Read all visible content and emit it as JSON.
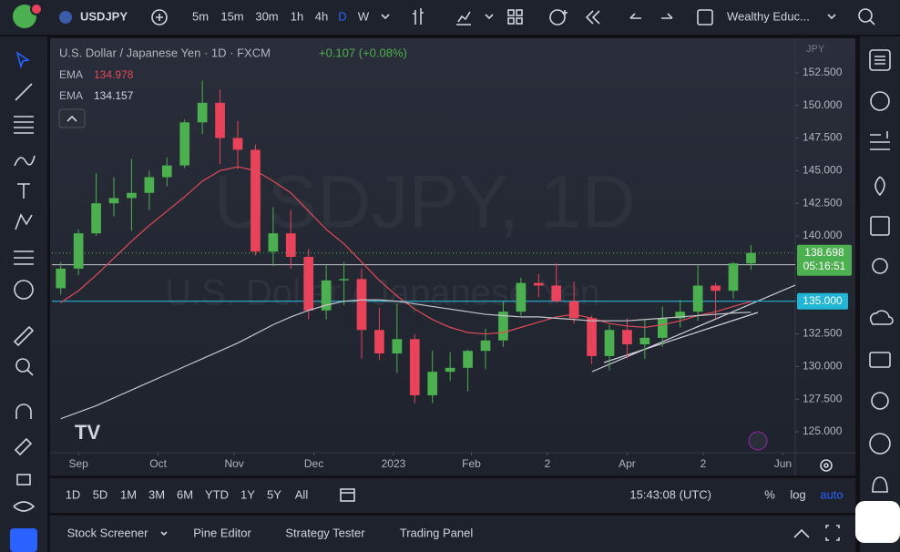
{
  "toolbar": {
    "symbol": "USDJPY",
    "intervals": [
      "5m",
      "15m",
      "30m",
      "1h",
      "4h",
      "D",
      "W"
    ],
    "layout_name": "Wealthy Educ..."
  },
  "legend": {
    "description": "U.S. Dollar / Japanese Yen · 1D · FXCM",
    "change": "+0.107 (+0.08%)",
    "ema_label": "EMA"
  },
  "watermark": {
    "title": "USDJPY, 1D",
    "subtitle": "U.S. Dollar / Japanese Yen"
  },
  "chart_data": {
    "type": "candlestick",
    "currency": "JPY",
    "up_color": "#4caf50",
    "down_color": "#e8435a",
    "x": [
      0,
      1,
      2,
      3,
      4,
      5,
      6,
      7,
      8,
      9,
      10,
      11,
      12,
      13,
      14,
      15,
      16,
      17,
      18,
      19,
      20,
      21,
      22,
      23,
      24,
      25,
      26,
      27,
      28,
      29,
      30,
      31,
      32,
      33,
      34,
      35,
      36,
      37,
      38,
      39
    ],
    "open": [
      136.0,
      137.5,
      140.2,
      142.5,
      142.9,
      143.3,
      144.5,
      145.4,
      148.7,
      150.2,
      147.5,
      146.6,
      138.8,
      140.2,
      138.4,
      134.3,
      136.6,
      136.7,
      132.8,
      131.0,
      132.1,
      127.8,
      129.6,
      129.9,
      131.2,
      132.0,
      134.2,
      136.4,
      136.2,
      135.0,
      133.7,
      130.8,
      132.8,
      131.7,
      132.2,
      133.7,
      134.2,
      136.2,
      135.8,
      137.9
    ],
    "high": [
      138.0,
      140.5,
      144.8,
      144.5,
      145.9,
      145.0,
      146.0,
      148.9,
      151.9,
      151.2,
      148.8,
      147.0,
      142.2,
      142.0,
      139.0,
      137.8,
      138.0,
      137.5,
      134.5,
      134.8,
      132.5,
      131.2,
      131.1,
      131.3,
      132.9,
      135.0,
      136.8,
      137.1,
      137.9,
      136.5,
      133.9,
      133.2,
      133.7,
      133.6,
      134.6,
      135.1,
      137.8,
      136.4,
      138.0,
      139.3
    ],
    "low": [
      135.5,
      137.0,
      140.0,
      141.5,
      140.4,
      142.0,
      143.8,
      145.2,
      147.8,
      145.5,
      145.1,
      138.5,
      137.7,
      137.5,
      133.6,
      133.6,
      134.7,
      130.6,
      130.5,
      129.5,
      127.2,
      127.2,
      128.9,
      128.1,
      129.8,
      131.5,
      133.9,
      135.3,
      134.9,
      133.3,
      130.2,
      129.7,
      130.6,
      130.6,
      131.5,
      133.0,
      133.5,
      133.7,
      135.2,
      137.4
    ],
    "close": [
      137.5,
      140.2,
      142.5,
      142.9,
      143.3,
      144.5,
      145.4,
      148.7,
      150.2,
      147.5,
      146.6,
      138.8,
      140.2,
      138.4,
      134.3,
      136.6,
      136.7,
      132.8,
      131.0,
      132.1,
      127.8,
      129.6,
      129.9,
      131.2,
      132.0,
      134.2,
      136.4,
      136.2,
      135.0,
      133.7,
      130.8,
      132.8,
      131.7,
      132.2,
      133.7,
      134.2,
      136.2,
      135.8,
      137.9,
      138.7
    ],
    "series": [
      {
        "name": "EMA",
        "color": "#e04a5a",
        "values": [
          134.9,
          135.8,
          137.0,
          138.3,
          139.6,
          140.8,
          141.9,
          143.0,
          144.2,
          145.0,
          145.3,
          145.0,
          144.2,
          143.3,
          141.9,
          140.5,
          139.4,
          138.0,
          136.6,
          135.4,
          134.4,
          133.6,
          133.0,
          132.6,
          132.5,
          132.6,
          133.0,
          133.4,
          133.8,
          134.0,
          133.7,
          133.3,
          133.1,
          133.0,
          133.2,
          133.5,
          133.9,
          134.2,
          134.6,
          134.978
        ]
      },
      {
        "name": "EMA",
        "color": "#c4c6cc",
        "values": [
          126.0,
          126.5,
          127.0,
          127.6,
          128.2,
          128.8,
          129.4,
          130.0,
          130.6,
          131.2,
          131.8,
          132.5,
          133.2,
          133.8,
          134.3,
          134.7,
          135.0,
          135.1,
          135.1,
          135.0,
          134.8,
          134.6,
          134.4,
          134.2,
          134.0,
          133.9,
          133.8,
          133.8,
          133.7,
          133.6,
          133.5,
          133.5,
          133.5,
          133.6,
          133.7,
          133.8,
          133.9,
          134.0,
          134.1,
          134.157
        ]
      }
    ],
    "last_price": 138.698,
    "countdown": "05:16:51",
    "price_line": {
      "value": 135,
      "label": "135.000",
      "color": "#22b6d6"
    },
    "drawn_levels": [
      137.8
    ],
    "xlim": [
      -0.5,
      41.5
    ],
    "ylim": [
      123.4,
      155.0
    ],
    "xticks": [
      {
        "value": 1.0,
        "label": "Sep"
      },
      {
        "value": 5.5,
        "label": "Oct"
      },
      {
        "value": 9.8,
        "label": "Nov"
      },
      {
        "value": 14.3,
        "label": "Dec"
      },
      {
        "value": 18.8,
        "label": "2023"
      },
      {
        "value": 23.2,
        "label": "Feb"
      },
      {
        "value": 27.5,
        "label": "2"
      },
      {
        "value": 32.0,
        "label": "Apr"
      },
      {
        "value": 36.3,
        "label": "2"
      },
      {
        "value": 40.8,
        "label": "Jun"
      }
    ],
    "yticks": [
      {
        "value": 125,
        "label": "125.000"
      },
      {
        "value": 127.5,
        "label": "127.500"
      },
      {
        "value": 130,
        "label": "130.000"
      },
      {
        "value": 132.5,
        "label": "132.500"
      },
      {
        "value": 135,
        "label": "135.000"
      },
      {
        "value": 137.5,
        "label": "137.500"
      },
      {
        "value": 140,
        "label": "140.000"
      },
      {
        "value": 142.5,
        "label": "142.500"
      },
      {
        "value": 145,
        "label": "145.000"
      },
      {
        "value": 147.5,
        "label": "147.500"
      },
      {
        "value": 150,
        "label": "150.000"
      },
      {
        "value": 152.5,
        "label": "152.500"
      }
    ],
    "grid": false
  },
  "bottom_bar": {
    "ranges": [
      "1D",
      "5D",
      "1M",
      "3M",
      "6M",
      "YTD",
      "1Y",
      "5Y",
      "All"
    ],
    "clock": "15:43:08 (UTC)",
    "percent": "%",
    "log": "log",
    "auto": "auto"
  },
  "panel_tabs": [
    "Stock Screener",
    "Pine Editor",
    "Strategy Tester",
    "Trading Panel"
  ]
}
